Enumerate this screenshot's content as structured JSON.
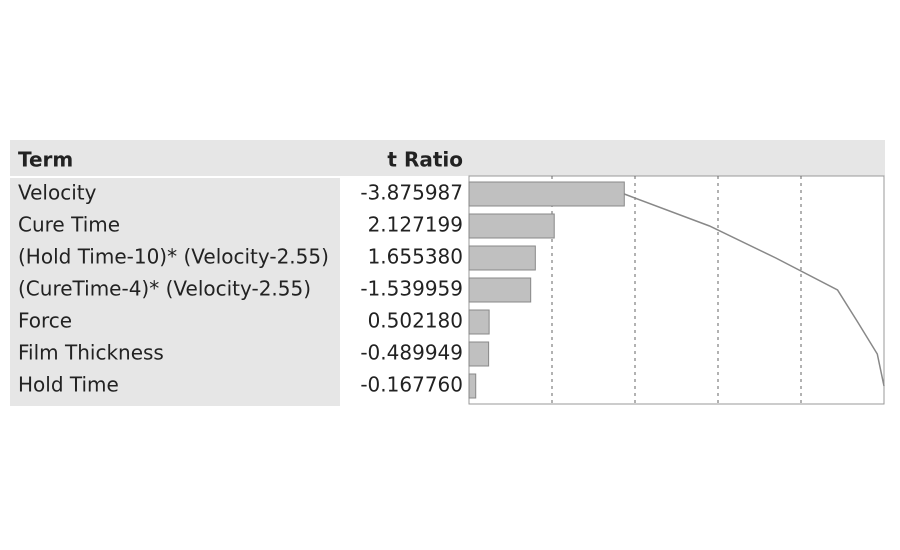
{
  "chart_data": {
    "type": "pareto",
    "columns": [
      "Term",
      "t Ratio"
    ],
    "categories": [
      "Velocity",
      "Cure Time",
      "(Hold Time-10)* (Velocity-2.55)",
      "(CureTime-4)* (Velocity-2.55)",
      "Force",
      "Film Thickness",
      "Hold Time"
    ],
    "values": [
      -3.875987,
      2.127199,
      1.65538,
      -1.539959,
      0.50218,
      -0.489949,
      -0.16776
    ],
    "value_labels": [
      "-3.875987",
      "2.127199",
      "1.655380",
      "-1.539959",
      "0.502180",
      "-0.489949",
      "-0.167760"
    ],
    "color": "#c0c0c0"
  }
}
